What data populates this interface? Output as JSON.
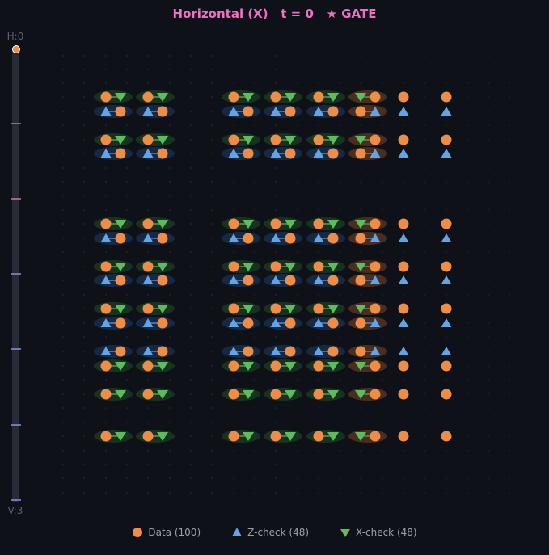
{
  "header": {
    "title": "Horizontal (X)   t = 0   ★ GATE"
  },
  "slider": {
    "top_label": "H:0",
    "bottom_label": "V:3",
    "position": 0
  },
  "legend": {
    "data": "Data (100)",
    "z": "Z-check (48)",
    "x": "X-check (48)"
  },
  "colors": {
    "data": "#ef8c45",
    "z_check": "#61a5e8",
    "x_check": "#5bbd5b",
    "title": "#ef6fc0",
    "background": "#0e1118"
  }
}
